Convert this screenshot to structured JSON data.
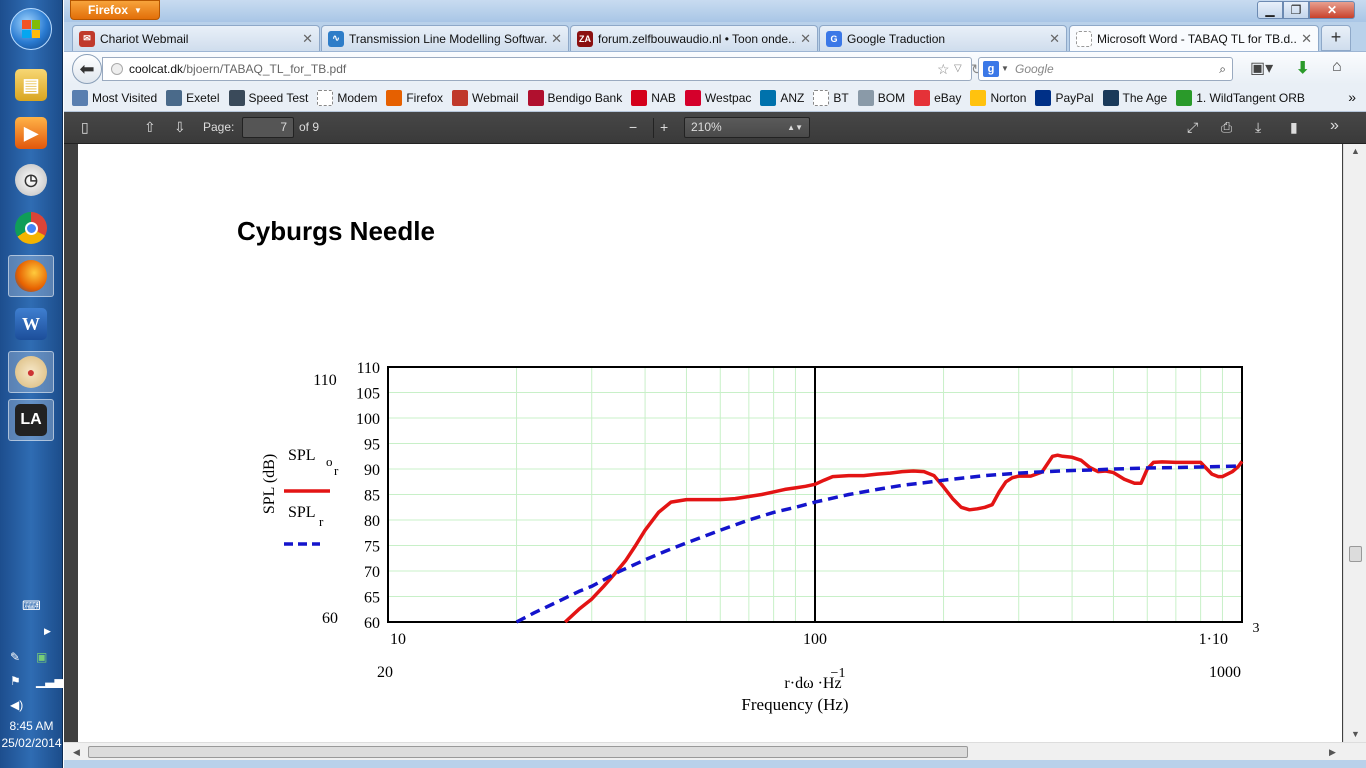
{
  "taskbar": {
    "icons": [
      "start-orb",
      "explorer",
      "media-player",
      "clock-app",
      "chrome",
      "firefox",
      "word",
      "paint",
      "la-app"
    ],
    "time": "8:45 AM",
    "date": "25/02/2014"
  },
  "browser": {
    "menu_button": "Firefox",
    "tabs": [
      {
        "title": "Chariot Webmail",
        "color": "#c0392b"
      },
      {
        "title": "Transmission Line Modelling Softwar...",
        "color": "#2e7dc8"
      },
      {
        "title": "forum.zelfbouwaudio.nl • Toon onde...",
        "color": "#8b1010"
      },
      {
        "title": "Google Traduction",
        "color": "#3b78e7"
      },
      {
        "title": "Microsoft Word - TABAQ TL for TB.d...",
        "color": "#ffffff"
      }
    ],
    "url_host": "coolcat.dk",
    "url_path": "/bjoern/TABAQ_TL_for_TB.pdf",
    "search_placeholder": "Google",
    "bookmarks": [
      {
        "label": "Most Visited",
        "color": "#5a7fb0"
      },
      {
        "label": "Exetel",
        "color": "#4a6a8a"
      },
      {
        "label": "Speed Test",
        "color": "#3a4a5a"
      },
      {
        "label": "Modem",
        "color": "#ffffff"
      },
      {
        "label": "Firefox",
        "color": "#e66000"
      },
      {
        "label": "Webmail",
        "color": "#c0392b"
      },
      {
        "label": "Bendigo Bank",
        "color": "#b0102e"
      },
      {
        "label": "NAB",
        "color": "#d4001a"
      },
      {
        "label": "Westpac",
        "color": "#d5002b"
      },
      {
        "label": "ANZ",
        "color": "#0072ac"
      },
      {
        "label": "BT",
        "color": "#ffffff"
      },
      {
        "label": "BOM",
        "color": "#8a9aa8"
      },
      {
        "label": "eBay",
        "color": "#e53238"
      },
      {
        "label": "Norton",
        "color": "#ffc20e"
      },
      {
        "label": "PayPal",
        "color": "#003087"
      },
      {
        "label": "The Age",
        "color": "#1a3a5a"
      },
      {
        "label": "1. WildTangent ORB",
        "color": "#2a9a2a"
      }
    ]
  },
  "pdf": {
    "page_label": "Page:",
    "page_current": "7",
    "page_total": "of 9",
    "zoom": "210%",
    "heading": "Cyburgs Needle"
  },
  "chart_data": {
    "type": "line",
    "x_scale": "log",
    "xlim": [
      10,
      1000
    ],
    "ylim": [
      60,
      110
    ],
    "y_ticks": [
      "60",
      "65",
      "70",
      "75",
      "80",
      "85",
      "90",
      "95",
      "100",
      "105",
      "110"
    ],
    "x_tick_labels": [
      "10",
      "100",
      "1·10"
    ],
    "x_tick_exponent": "3",
    "extra_labels": {
      "y_top": "110",
      "y_bottom": "60",
      "x_left": "20",
      "x_right": "1000"
    },
    "ylabel": "SPL (dB)",
    "xlabel_expr": "r·dω ·Hz",
    "xlabel_exp": "−1",
    "xlabel": "Frequency (Hz)",
    "legend": [
      {
        "name": "SPL",
        "sub": "o",
        "subsub": "r",
        "style": "solid",
        "color": "#e31414"
      },
      {
        "name": "SPL",
        "sub": "r",
        "style": "dashed",
        "color": "#1414cc"
      }
    ],
    "series": [
      {
        "name": "SPL_or",
        "color": "#e31414",
        "style": "solid",
        "x": [
          26,
          28,
          30,
          32,
          34,
          36,
          38,
          40,
          43,
          46,
          50,
          55,
          60,
          65,
          70,
          75,
          80,
          85,
          90,
          95,
          100,
          105,
          110,
          120,
          130,
          140,
          150,
          160,
          170,
          180,
          190,
          200,
          210,
          220,
          230,
          240,
          250,
          260,
          270,
          280,
          290,
          300,
          320,
          340,
          360,
          370,
          380,
          400,
          420,
          440,
          460,
          480,
          500,
          530,
          560,
          580,
          600,
          620,
          650,
          700,
          750,
          800,
          850,
          880,
          900,
          950,
          980,
          1000
        ],
        "y": [
          60,
          62.5,
          64.5,
          67,
          69.5,
          72,
          75,
          78,
          81.5,
          83.5,
          84,
          84,
          84,
          84.2,
          84.6,
          85,
          85.5,
          86,
          86.3,
          86.6,
          87,
          87.8,
          88.5,
          88.7,
          88.7,
          89,
          89.2,
          89.5,
          89.6,
          89.5,
          88.7,
          86.5,
          84.2,
          82.5,
          82,
          82.2,
          82.5,
          83,
          85.5,
          87.5,
          88.3,
          88.6,
          88.6,
          89.4,
          92.5,
          92.7,
          92.5,
          92.3,
          91.7,
          90.3,
          89.5,
          89.6,
          89.3,
          88,
          87.2,
          87.2,
          90,
          91.3,
          91.4,
          91.3,
          91.3,
          91.3,
          89,
          88.5,
          88.5,
          89.5,
          90.5,
          91.5
        ]
      },
      {
        "name": "SPL_r",
        "color": "#1414cc",
        "style": "dashed",
        "x": [
          20,
          22,
          25,
          28,
          30,
          35,
          40,
          45,
          50,
          55,
          60,
          70,
          80,
          90,
          100,
          120,
          140,
          160,
          180,
          200,
          250,
          300,
          350,
          400,
          450,
          500,
          600,
          700,
          800,
          900,
          1000
        ],
        "y": [
          60,
          61.8,
          64,
          66,
          67,
          70,
          72.2,
          74,
          75.5,
          76.8,
          78,
          80,
          81.5,
          82.5,
          83.5,
          85,
          86,
          86.8,
          87.3,
          87.8,
          88.7,
          89.2,
          89.5,
          89.7,
          89.8,
          90,
          90.2,
          90.3,
          90.4,
          90.5,
          90.6
        ]
      }
    ]
  }
}
